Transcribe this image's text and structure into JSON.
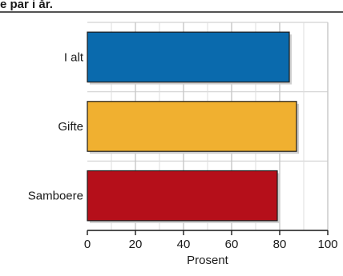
{
  "header": {
    "text": "e par i år."
  },
  "chart_data": {
    "type": "bar",
    "orientation": "horizontal",
    "categories": [
      "I alt",
      "Gifte",
      "Samboere"
    ],
    "values": [
      84,
      87,
      79
    ],
    "colors": [
      "#0a6aad",
      "#f0b030",
      "#b50f1a"
    ],
    "xlabel": "Prosent",
    "ylabel": "",
    "xlim": [
      0,
      100
    ],
    "xticks": [
      0,
      20,
      40,
      60,
      80,
      100
    ],
    "grid": true
  }
}
